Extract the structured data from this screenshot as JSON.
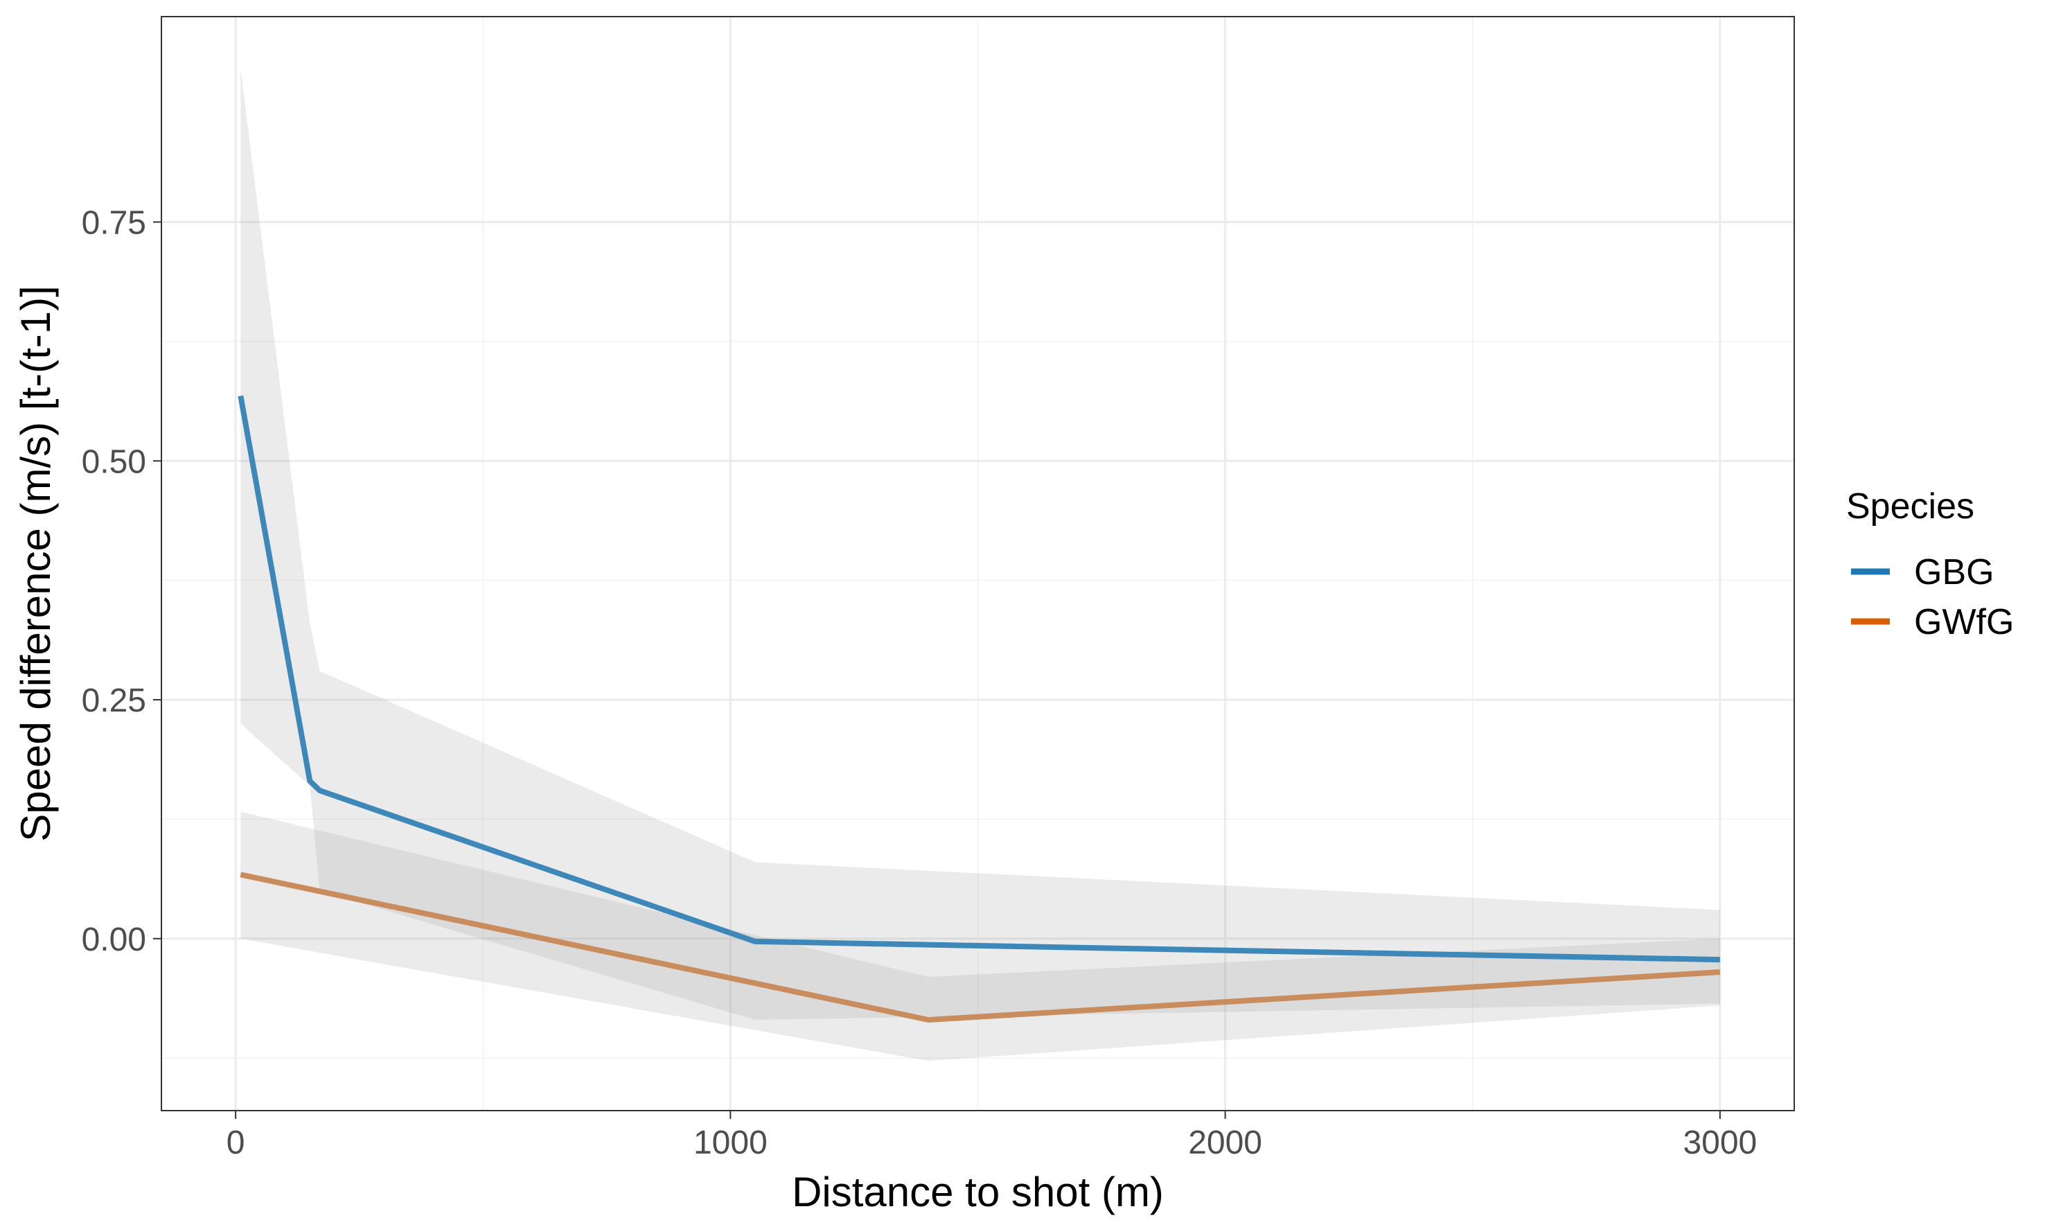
{
  "chart_data": {
    "type": "line",
    "xlabel": "Distance to shot (m)",
    "ylabel": "Speed difference (m/s) [t-(t-1)]",
    "xlim": [
      -150,
      3150
    ],
    "ylim": [
      -0.18,
      0.965
    ],
    "x_ticks": [
      0,
      1000,
      2000,
      3000
    ],
    "x_tick_labels": [
      "0",
      "1000",
      "2000",
      "3000"
    ],
    "y_ticks": [
      0.0,
      0.25,
      0.5,
      0.75
    ],
    "y_tick_labels": [
      "0.00",
      "0.25",
      "0.50",
      "0.75"
    ],
    "grid": true,
    "legend": {
      "title": "Species",
      "position": "right"
    },
    "series": [
      {
        "name": "GBG",
        "color": "#3d88b9",
        "x": [
          10,
          150,
          170,
          1050,
          3000
        ],
        "y": [
          0.568,
          0.165,
          0.155,
          -0.003,
          -0.022
        ],
        "ribbon_upper": [
          0.91,
          0.33,
          0.28,
          0.08,
          0.03
        ],
        "ribbon_lower": [
          0.225,
          0.16,
          0.05,
          -0.085,
          -0.068
        ]
      },
      {
        "name": "GWfG",
        "color": "#c98c5c",
        "x": [
          10,
          1400,
          3000
        ],
        "y": [
          0.067,
          -0.085,
          -0.035
        ],
        "ribbon_upper": [
          0.133,
          -0.04,
          0.0
        ],
        "ribbon_lower": [
          0.0,
          -0.128,
          -0.07
        ]
      }
    ]
  },
  "legend_items": [
    {
      "label": "GBG",
      "color": "#1f78b4"
    },
    {
      "label": "GWfG",
      "color": "#d95f02"
    }
  ]
}
